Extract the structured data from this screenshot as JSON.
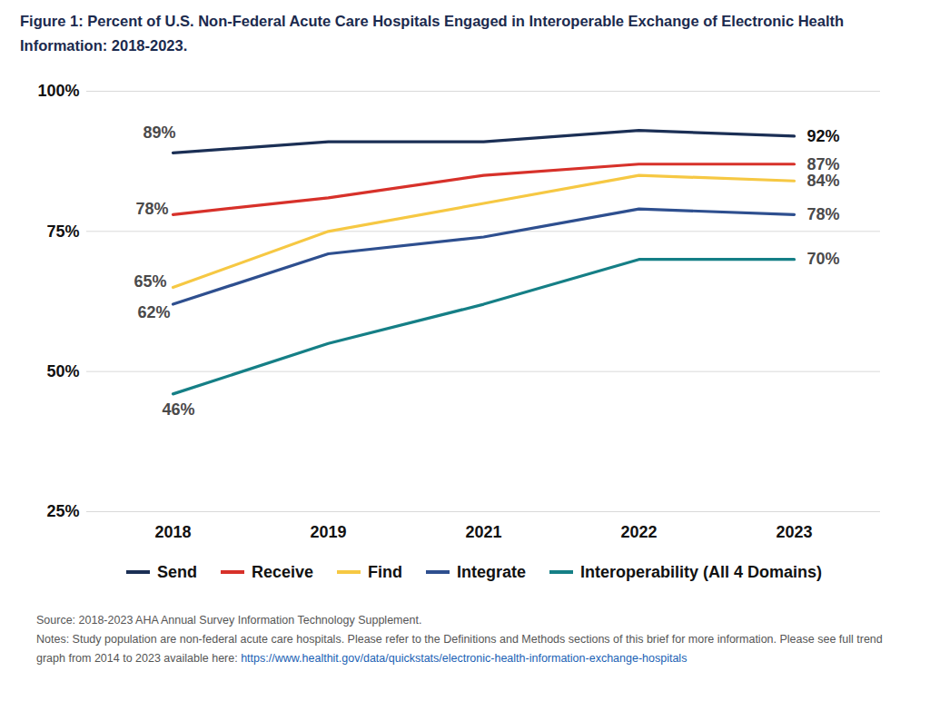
{
  "chart_data": {
    "type": "line",
    "title": "Figure 1: Percent of U.S. Non-Federal Acute Care Hospitals Engaged in Interoperable Exchange of Electronic Health Information: 2018-2023.",
    "categories": [
      "2018",
      "2019",
      "2021",
      "2022",
      "2023"
    ],
    "series": [
      {
        "name": "Send",
        "color": "#1b2f55",
        "values": [
          89,
          91,
          91,
          93,
          92
        ],
        "value_labels": [
          "89%",
          null,
          null,
          null,
          "92%"
        ]
      },
      {
        "name": "Receive",
        "color": "#d7312a",
        "values": [
          78,
          81,
          85,
          87,
          87
        ],
        "value_labels": [
          "78%",
          null,
          null,
          null,
          "87%"
        ]
      },
      {
        "name": "Find",
        "color": "#f6c843",
        "values": [
          65,
          75,
          80,
          85,
          84
        ],
        "value_labels": [
          "65%",
          null,
          null,
          null,
          "84%"
        ]
      },
      {
        "name": "Integrate",
        "color": "#2e4f8f",
        "values": [
          62,
          71,
          74,
          79,
          78
        ],
        "value_labels": [
          "62%",
          null,
          null,
          null,
          "78%"
        ]
      },
      {
        "name": "Interoperability (All 4 Domains)",
        "color": "#157f86",
        "values": [
          46,
          55,
          62,
          70,
          70
        ],
        "value_labels": [
          "46%",
          null,
          null,
          null,
          "70%"
        ]
      }
    ],
    "ylim": [
      25,
      100
    ],
    "yticks": [
      {
        "value": 25,
        "label": "25%"
      },
      {
        "value": 50,
        "label": "50%"
      },
      {
        "value": 75,
        "label": "75%"
      },
      {
        "value": 100,
        "label": "100%"
      }
    ],
    "grid": true,
    "data_labels": true,
    "legend": "bottom",
    "source": "Source: 2018-2023 AHA Annual Survey Information Technology Supplement.",
    "notes": "Notes: Study population are non-federal acute care hospitals. Please refer to the Definitions and Methods sections of this brief for more information. Please see full trend graph from 2014 to 2023 available here:",
    "notes_link": "https://www.healthit.gov/data/quickstats/electronic-health-information-exchange-hospitals"
  }
}
